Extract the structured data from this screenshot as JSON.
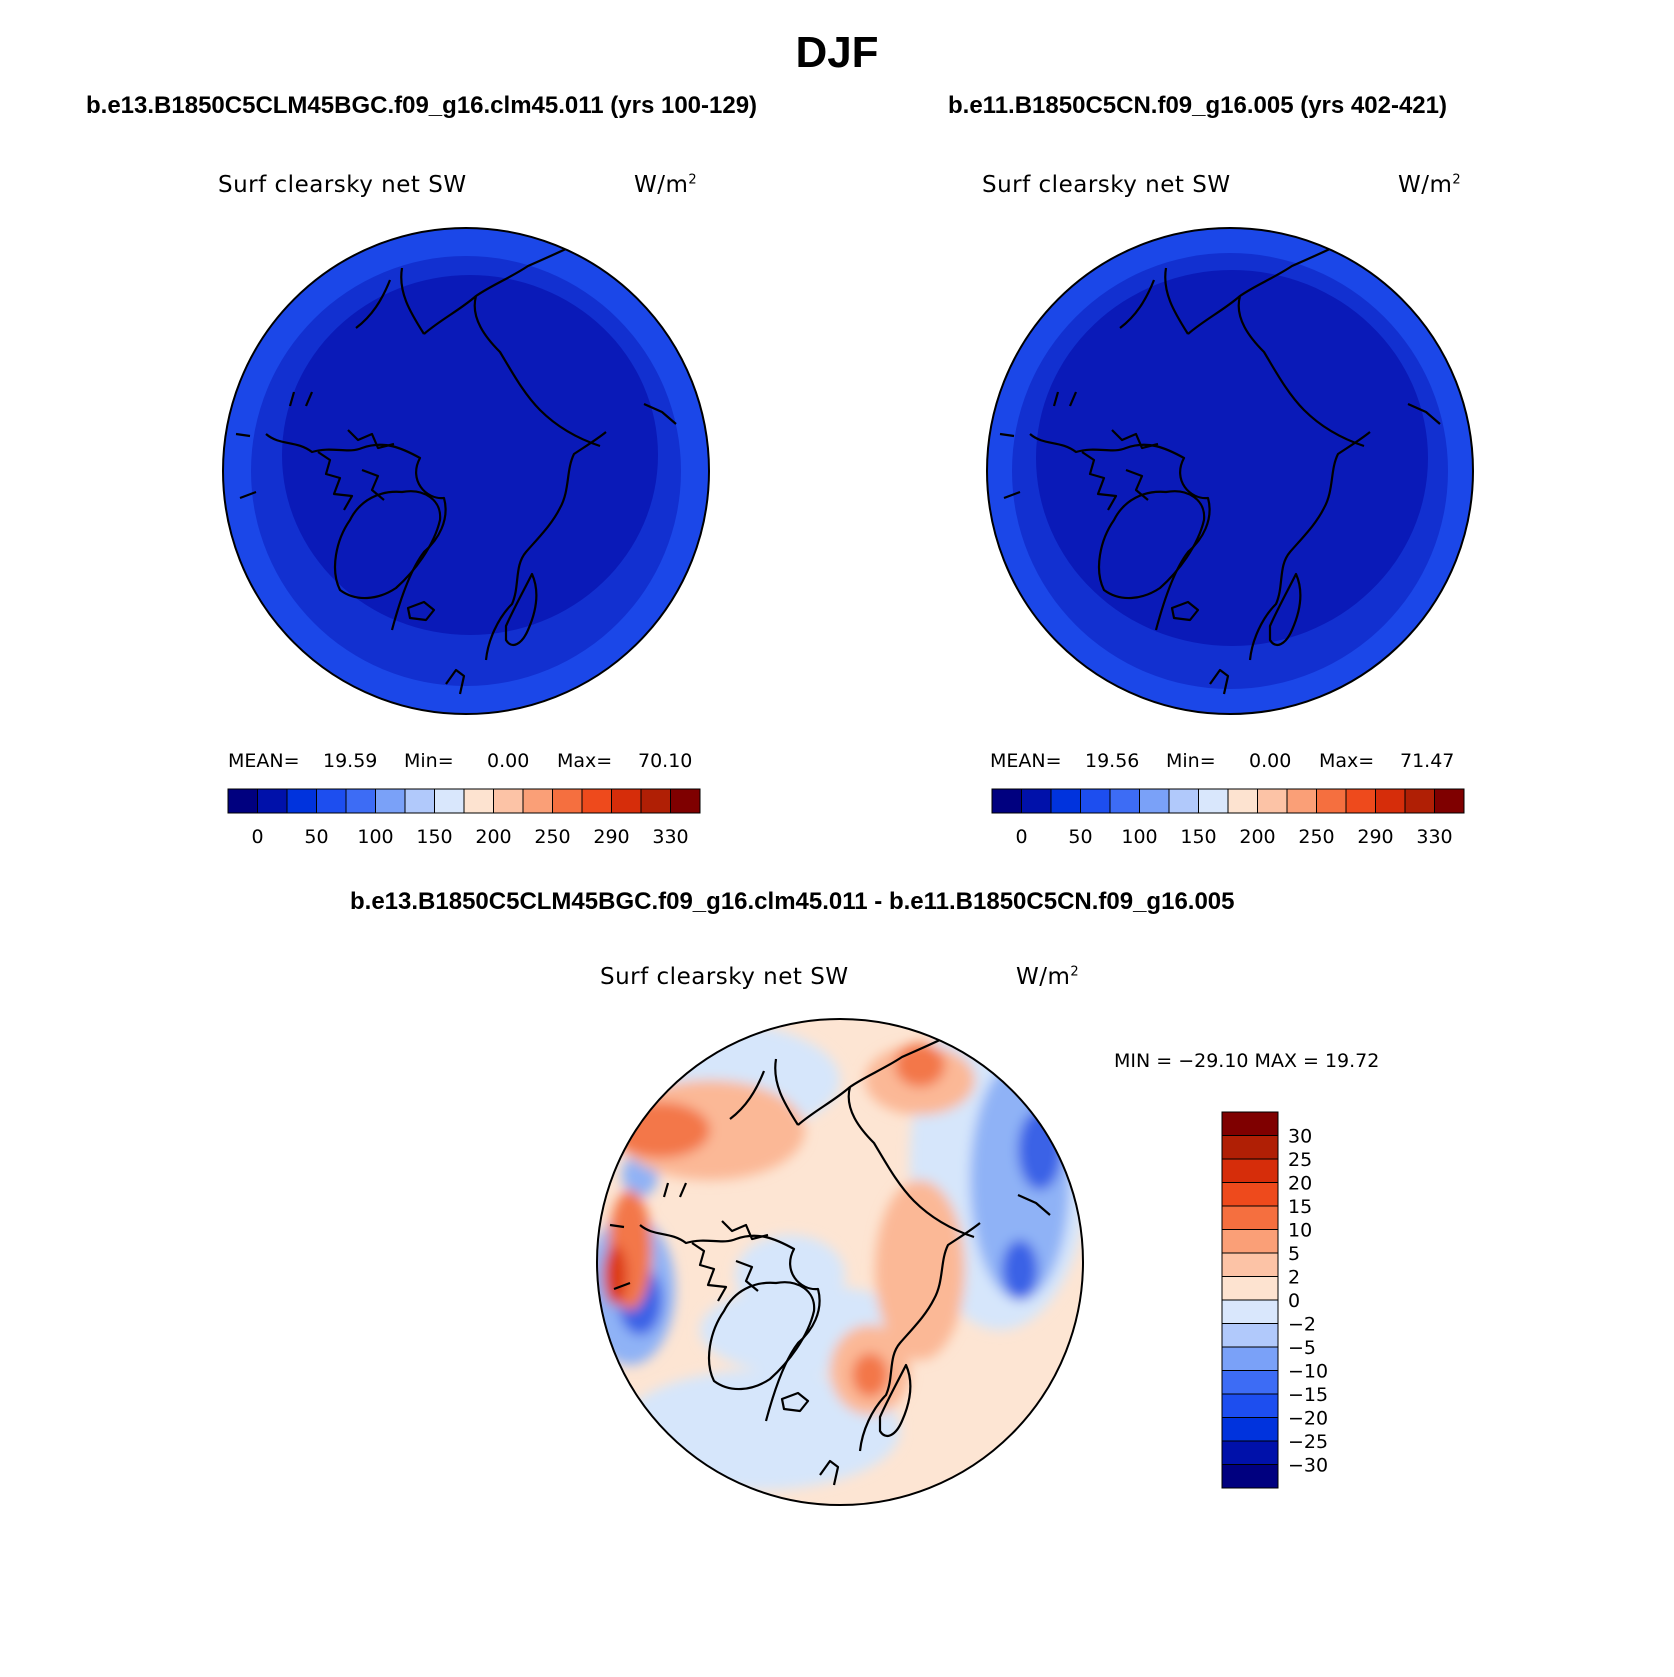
{
  "figure": {
    "title": "DJF"
  },
  "panels": [
    {
      "case_title": "b.e13.B1850C5CLM45BGC.f09_g16.clm45.011 (yrs 100-129)",
      "variable": "Surf clearsky net SW",
      "units_base": "W/m",
      "units_exp": "2",
      "stats": {
        "mean_label": "MEAN=",
        "mean": "19.59",
        "min_label": "Min=",
        "min": "0.00",
        "max_label": "Max=",
        "max": "70.10"
      }
    },
    {
      "case_title": "b.e11.B1850C5CN.f09_g16.005 (yrs 402-421)",
      "variable": "Surf clearsky net SW",
      "units_base": "W/m",
      "units_exp": "2",
      "stats": {
        "mean_label": "MEAN=",
        "mean": "19.56",
        "min_label": "Min=",
        "min": "0.00",
        "max_label": "Max=",
        "max": "71.47"
      }
    },
    {
      "case_title": "b.e13.B1850C5CLM45BGC.f09_g16.clm45.011 - b.e11.B1850C5CN.f09_g16.005",
      "variable": "Surf clearsky net SW",
      "units_base": "W/m",
      "units_exp": "2",
      "stats_text": "MIN = −29.10 MAX =  19.72"
    }
  ],
  "colorbars": {
    "horizontal": {
      "labels": [
        "0",
        "50",
        "100",
        "150",
        "200",
        "250",
        "290",
        "330"
      ],
      "colors": [
        "#00007f",
        "#0011aa",
        "#0033dd",
        "#1d4eef",
        "#3d6cf5",
        "#7aa1f8",
        "#b1c9fb",
        "#d9e7fc",
        "#fde3d0",
        "#fcc3a6",
        "#fa9f77",
        "#f56f3f",
        "#ee4a1c",
        "#d62d0a",
        "#b01f05",
        "#7f0000"
      ]
    },
    "vertical": {
      "labels": [
        "30",
        "25",
        "20",
        "15",
        "10",
        "5",
        "2",
        "0",
        "−2",
        "−5",
        "−10",
        "−15",
        "−20",
        "−25",
        "−30"
      ],
      "colors": [
        "#7f0000",
        "#b01f05",
        "#d62d0a",
        "#ee4a1c",
        "#f56f3f",
        "#fa9f77",
        "#fcc3a6",
        "#fde3d0",
        "#d9e7fc",
        "#b1c9fb",
        "#7aa1f8",
        "#3d6cf5",
        "#1d4eef",
        "#0033dd",
        "#0011aa",
        "#00007f"
      ]
    }
  },
  "map_colors": {
    "deep": "#0a1ab8",
    "mid": "#1230d0",
    "outer": "#1b47e8",
    "diff_base": "#fde5d3",
    "diff_blue_light": "#d6e6fb",
    "diff_blue_mid": "#8fb2f6",
    "diff_blue_strong": "#3a62e6",
    "diff_red_light": "#fbb896",
    "diff_red_mid": "#f3774a",
    "diff_red_strong": "#dc3a14"
  }
}
